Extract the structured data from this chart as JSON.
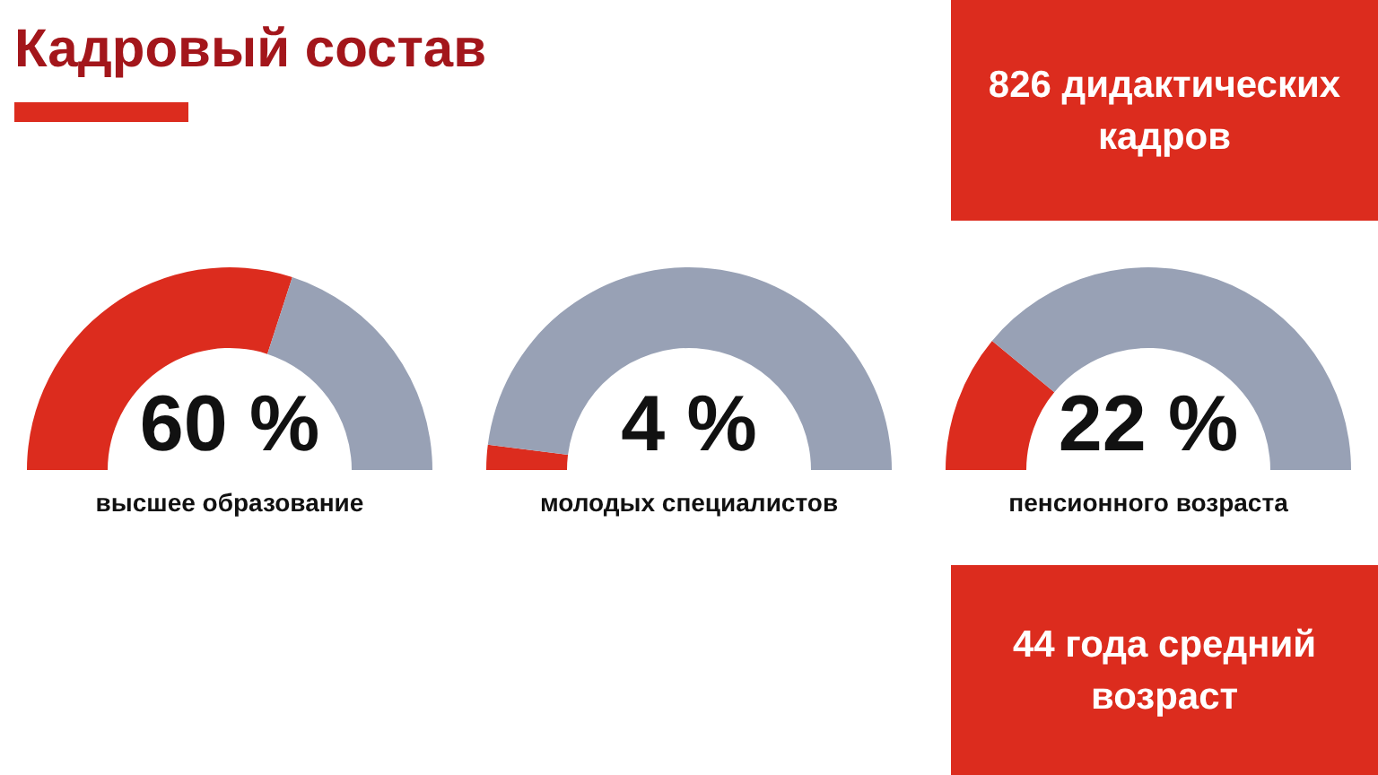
{
  "chart_data": [
    {
      "type": "other",
      "title": "Кадровый состав"
    },
    {
      "type": "donut",
      "categories": [
        null,
        null
      ],
      "values": [
        60,
        40
      ],
      "colors": [
        "#dc2c1e",
        "#98a1b5"
      ],
      "annotations": [
        "60 %",
        "высшее образование"
      ]
    },
    {
      "type": "donut",
      "categories": [
        null,
        null
      ],
      "values": [
        4,
        96
      ],
      "colors": [
        "#dc2c1e",
        "#98a1b5"
      ],
      "annotations": [
        "4 %",
        "молодых специалистов"
      ]
    },
    {
      "type": "donut",
      "categories": [
        null,
        null
      ],
      "values": [
        22,
        78
      ],
      "colors": [
        "#dc2c1e",
        "#98a1b5"
      ],
      "annotations": [
        "22 %",
        "пенсионного возраста"
      ]
    },
    {
      "type": "other",
      "title": "826 дидактических кадров"
    },
    {
      "type": "other",
      "title": "44 года средний возраст"
    }
  ]
}
